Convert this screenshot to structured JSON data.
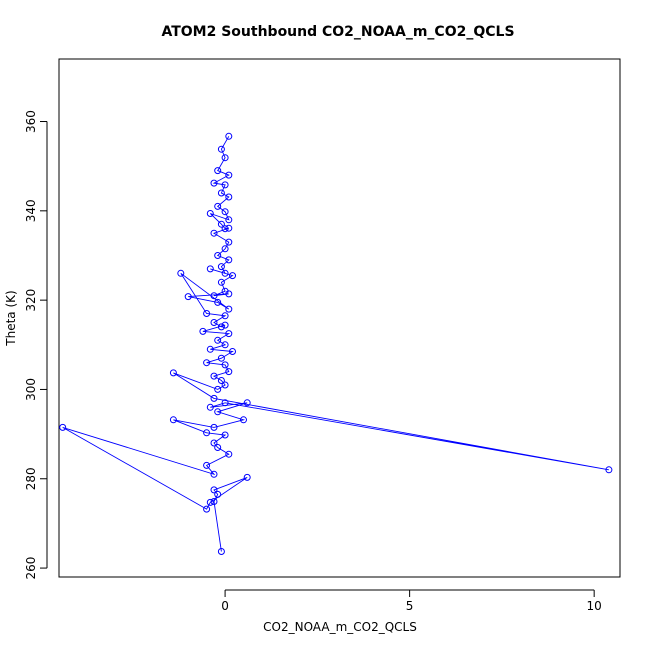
{
  "chart_data": {
    "type": "line",
    "title": "ATOM2 Southbound CO2_NOAA_m_CO2_QCLS",
    "xlabel": "CO2_NOAA_m_CO2_QCLS",
    "ylabel": "Theta (K)",
    "xlim": [
      -4.5,
      10.7
    ],
    "ylim": [
      258,
      374
    ],
    "xticks": [
      0,
      5,
      10
    ],
    "yticks": [
      260,
      280,
      300,
      320,
      340,
      360
    ],
    "grid": false,
    "legend": "none",
    "series": [
      {
        "color": "#0000ff",
        "marker": "open-circle",
        "x": [
          0.1,
          -0.1,
          0.0,
          -0.2,
          0.1,
          -0.3,
          0.0,
          -0.1,
          0.1,
          -0.2,
          0.0,
          0.1,
          -0.4,
          -0.1,
          0.0,
          0.1,
          -0.3,
          0.1,
          0.0,
          -0.2,
          0.1,
          -0.1,
          0.0,
          -0.4,
          0.2,
          -0.1,
          0.0,
          -0.3,
          0.1,
          -1.0,
          -0.2,
          0.1,
          -1.2,
          -0.5,
          0.0,
          -0.3,
          -0.1,
          0.0,
          -0.6,
          0.1,
          -0.2,
          0.0,
          -0.4,
          0.2,
          -0.1,
          -0.5,
          0.0,
          0.1,
          -0.3,
          -0.1,
          0.0,
          -0.2,
          -1.4,
          -0.3,
          10.4,
          0.0,
          -0.4,
          0.6,
          -0.2,
          0.5,
          -0.3,
          -1.4,
          -0.5,
          0.0,
          -0.3,
          -0.2,
          0.1,
          -0.5,
          -0.3,
          -4.4,
          -0.5,
          -0.4,
          0.6,
          -0.3,
          -0.2,
          -0.3,
          -0.1
        ],
        "y": [
          356.7,
          353.8,
          351.9,
          349.0,
          348.0,
          346.2,
          345.8,
          344.0,
          343.1,
          341.0,
          339.8,
          338.0,
          339.4,
          337.0,
          336.0,
          336.1,
          335.0,
          333.0,
          331.5,
          330.0,
          329.0,
          327.5,
          326.0,
          327.0,
          325.5,
          324.0,
          322.0,
          321.0,
          321.4,
          320.8,
          319.5,
          318.0,
          326.0,
          317.0,
          316.5,
          315.0,
          314.0,
          314.4,
          313.0,
          312.5,
          311.0,
          310.0,
          309.0,
          308.5,
          307.0,
          306.0,
          305.5,
          304.0,
          303.0,
          302.0,
          301.0,
          300.0,
          303.7,
          298.0,
          282.0,
          297.0,
          296.0,
          297.0,
          295.0,
          293.2,
          291.5,
          293.2,
          290.3,
          289.8,
          288.0,
          287.0,
          285.5,
          283.0,
          281.0,
          291.5,
          273.2,
          274.7,
          280.3,
          277.5,
          276.5,
          274.9,
          263.7
        ]
      }
    ]
  }
}
